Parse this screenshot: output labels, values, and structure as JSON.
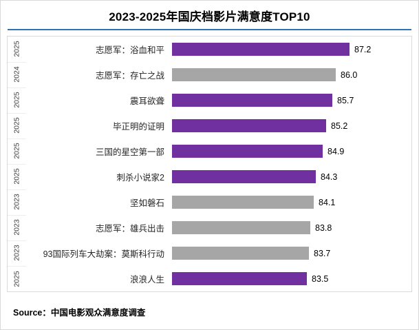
{
  "title": "2023-2025年国庆档影片满意度TOP10",
  "source": "Source：中国电影观众满意度调查",
  "colors": {
    "purple": "#7030A0",
    "gray": "#A6A6A6",
    "title_underline": "#2E74B5",
    "panel_border": "#D9D9D9"
  },
  "chart_data": {
    "type": "bar",
    "orientation": "horizontal",
    "title": "2023-2025年国庆档影片满意度TOP10",
    "xlabel": "",
    "ylabel": "",
    "xlim": [
      72,
      88
    ],
    "legend": "none",
    "grid": false,
    "categories": [
      "志愿军：浴血和平",
      "志愿军：存亡之战",
      "震耳欲聋",
      "毕正明的证明",
      "三国的星空第一部",
      "刺杀小说家2",
      "坚如磐石",
      "志愿军：雄兵出击",
      "93国际列车大劫案：莫斯科行动",
      "浪浪人生"
    ],
    "values": [
      87.2,
      86.0,
      85.7,
      85.2,
      84.9,
      84.3,
      84.1,
      83.8,
      83.7,
      83.5
    ],
    "rows": [
      {
        "year": "2025",
        "name": "志愿军：浴血和平",
        "value": "87.2",
        "color": "purple"
      },
      {
        "year": "2024",
        "name": "志愿军：存亡之战",
        "value": "86.0",
        "color": "gray"
      },
      {
        "year": "2025",
        "name": "震耳欲聋",
        "value": "85.7",
        "color": "purple"
      },
      {
        "year": "2025",
        "name": "毕正明的证明",
        "value": "85.2",
        "color": "purple"
      },
      {
        "year": "2025",
        "name": "三国的星空第一部",
        "value": "84.9",
        "color": "purple"
      },
      {
        "year": "2025",
        "name": "刺杀小说家2",
        "value": "84.3",
        "color": "purple"
      },
      {
        "year": "2023",
        "name": "坚如磐石",
        "value": "84.1",
        "color": "gray"
      },
      {
        "year": "2023",
        "name": "志愿军：雄兵出击",
        "value": "83.8",
        "color": "gray"
      },
      {
        "year": "2023",
        "name": "93国际列车大劫案：莫斯科行动",
        "value": "83.7",
        "color": "gray"
      },
      {
        "year": "2025",
        "name": "浪浪人生",
        "value": "83.5",
        "color": "purple"
      }
    ]
  }
}
